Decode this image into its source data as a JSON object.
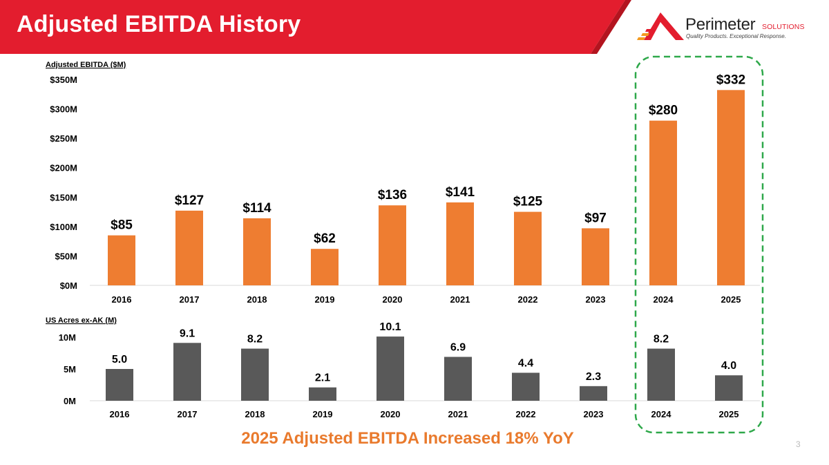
{
  "slide": {
    "title": "Adjusted EBITDA History",
    "headline": "2025 Adjusted EBITDA Increased 18% YoY",
    "page_number": "3",
    "highlight_years": [
      "2024",
      "2025"
    ],
    "colors": {
      "header_red": "#e31d2e",
      "orange": "#ee7d31",
      "gray": "#595959",
      "highlight_green": "#2ea84a",
      "headline_orange": "#e97a2d"
    }
  },
  "logo": {
    "name": "Perimeter",
    "suffix": "SOLUTIONS",
    "tagline": "Quality Products. Exceptional Response."
  },
  "chart_data": [
    {
      "type": "bar",
      "ylabel": "Adjusted EBITDA ($M)",
      "categories": [
        "2016",
        "2017",
        "2018",
        "2019",
        "2020",
        "2021",
        "2022",
        "2023",
        "2024",
        "2025"
      ],
      "values": [
        85,
        127,
        114,
        62,
        136,
        141,
        125,
        97,
        280,
        332
      ],
      "data_labels": [
        "$85",
        "$127",
        "$114",
        "$62",
        "$136",
        "$141",
        "$125",
        "$97",
        "$280",
        "$332"
      ],
      "ylim": [
        0,
        350
      ],
      "yticks": [
        0,
        50,
        100,
        150,
        200,
        250,
        300,
        350
      ],
      "ytick_labels": [
        "$0M",
        "$50M",
        "$100M",
        "$150M",
        "$200M",
        "$250M",
        "$300M",
        "$350M"
      ],
      "bar_color": "#ee7d31",
      "grid": false,
      "legend": "none"
    },
    {
      "type": "bar",
      "ylabel": "US Acres ex-AK (M)",
      "categories": [
        "2016",
        "2017",
        "2018",
        "2019",
        "2020",
        "2021",
        "2022",
        "2023",
        "2024",
        "2025"
      ],
      "values": [
        5.0,
        9.1,
        8.2,
        2.1,
        10.1,
        6.9,
        4.4,
        2.3,
        8.2,
        4.0
      ],
      "data_labels": [
        "5.0",
        "9.1",
        "8.2",
        "2.1",
        "10.1",
        "6.9",
        "4.4",
        "2.3",
        "8.2",
        "4.0"
      ],
      "ylim": [
        0,
        10
      ],
      "yticks": [
        0,
        5,
        10
      ],
      "ytick_labels": [
        "0M",
        "5M",
        "10M"
      ],
      "bar_color": "#595959",
      "grid": false,
      "legend": "none"
    }
  ]
}
